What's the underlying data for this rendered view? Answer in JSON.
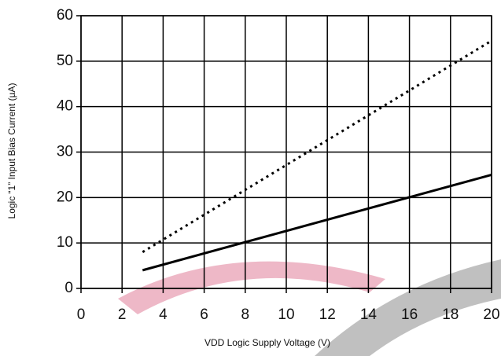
{
  "chart_data": {
    "type": "line",
    "x_label": "VDD Logic Supply Voltage (V)",
    "y_label": "Logic “1” Input Bias Current (µA)",
    "x": [
      3,
      20
    ],
    "series": [
      {
        "color": "#000000",
        "style": "dotted",
        "values": [
          8,
          54.5
        ]
      },
      {
        "color": "#000000",
        "style": "solid",
        "values": [
          4,
          25
        ]
      }
    ],
    "xlim": [
      0,
      20
    ],
    "xticks": [
      0,
      2,
      4,
      6,
      8,
      10,
      12,
      14,
      16,
      18,
      20
    ],
    "ylim": [
      0,
      60
    ],
    "yticks": [
      0,
      10,
      20,
      30,
      40,
      50,
      60
    ],
    "grid": true
  }
}
